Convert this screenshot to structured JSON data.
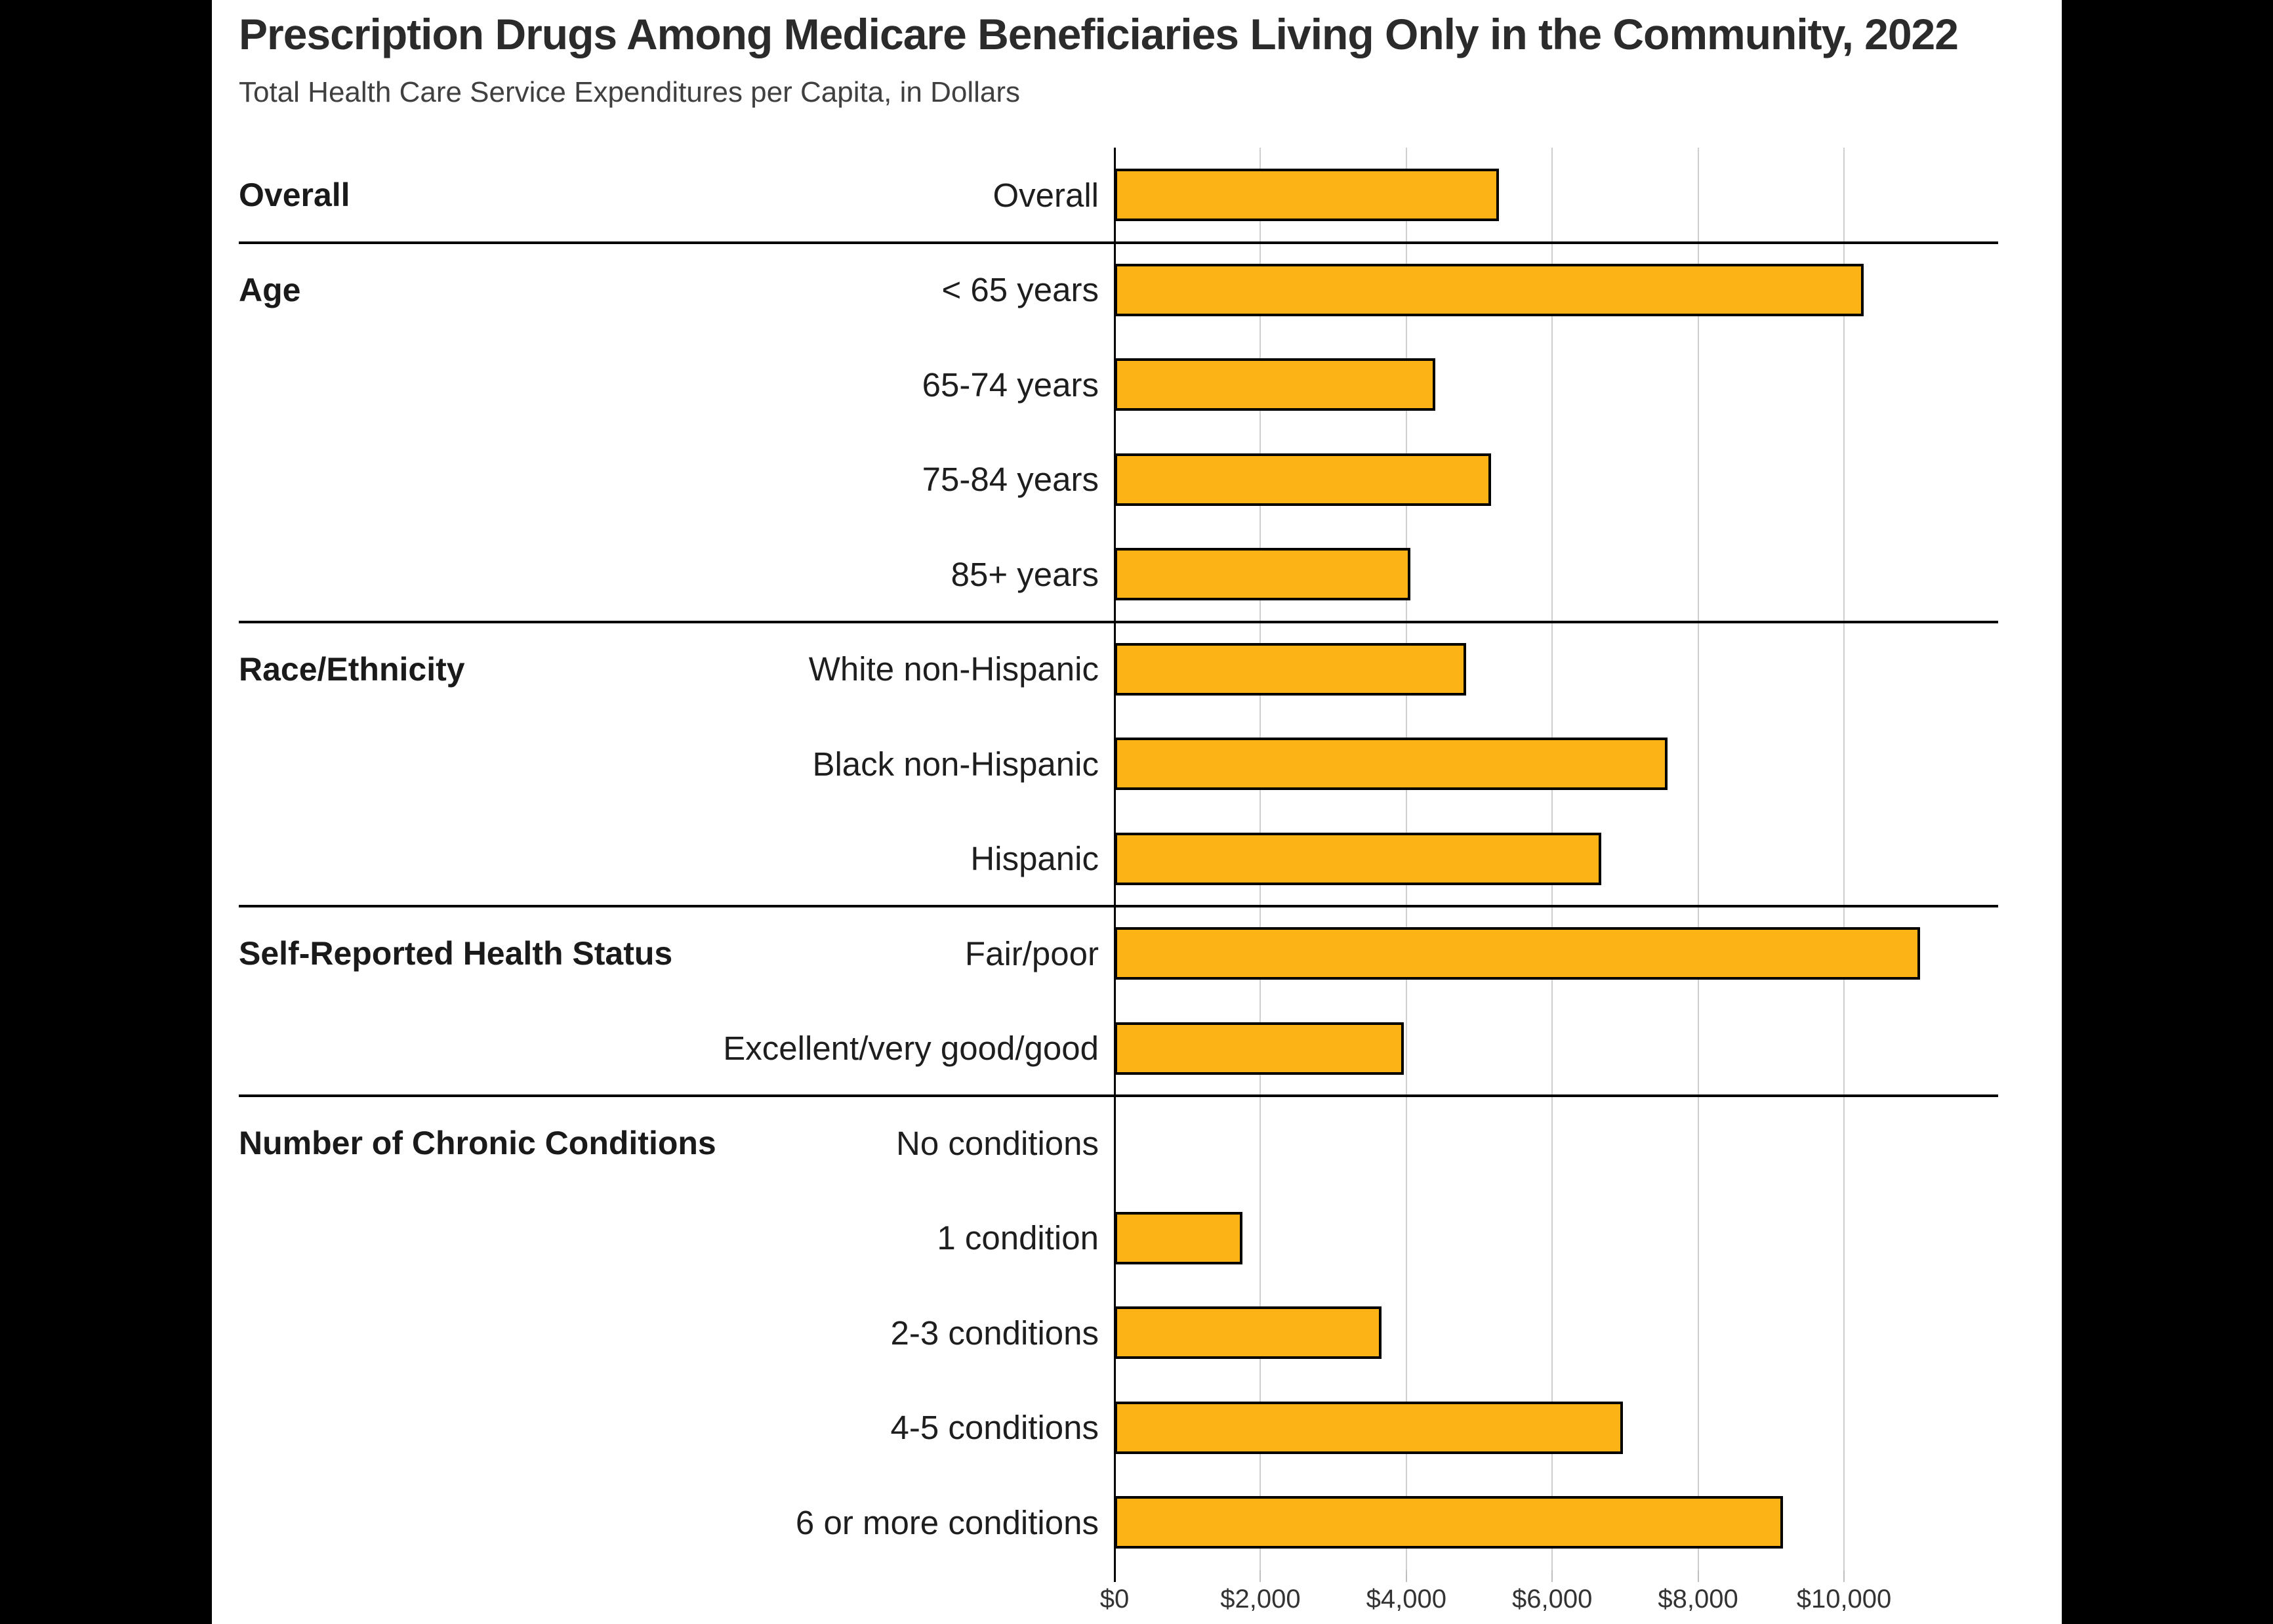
{
  "page": {
    "letterbox_color": "#000000",
    "canvas_color": "#FFFFFF"
  },
  "header": {
    "title": "Prescription Drugs Among Medicare Beneficiaries Living Only in the Community, 2022",
    "subtitle": "Total Health Care Service Expenditures per Capita, in Dollars"
  },
  "chart_data": {
    "type": "bar",
    "orientation": "horizontal",
    "title": "Prescription Drugs Among Medicare Beneficiaries Living Only in the Community, 2022",
    "subtitle": "Total Health Care Service Expenditures per Capita, in Dollars",
    "xlabel": "Total Health Care Service Expenditures per Capita (Dollars)",
    "ylabel": "",
    "xlim": [
      0,
      12100
    ],
    "grid": true,
    "legend": "none",
    "value_precision_note": "values estimated from gridlines, approx +/- 50 dollars",
    "bar_color": "#FCB315",
    "bar_border_color": "#000000",
    "x_ticks": [
      {
        "value": 0,
        "label": "$0"
      },
      {
        "value": 2000,
        "label": "$2,000"
      },
      {
        "value": 4000,
        "label": "$4,000"
      },
      {
        "value": 6000,
        "label": "$6,000"
      },
      {
        "value": 8000,
        "label": "$8,000"
      },
      {
        "value": 10000,
        "label": "$10,000"
      }
    ],
    "groups": [
      {
        "group": "Overall",
        "items": [
          {
            "label": "Overall",
            "value": 5270
          }
        ]
      },
      {
        "group": "Age",
        "items": [
          {
            "label": "< 65 years",
            "value": 10270
          },
          {
            "label": "65-74 years",
            "value": 4400
          },
          {
            "label": "75-84 years",
            "value": 5160
          },
          {
            "label": "85+ years",
            "value": 4060
          }
        ]
      },
      {
        "group": "Race/Ethnicity",
        "items": [
          {
            "label": "White non-Hispanic",
            "value": 4820
          },
          {
            "label": "Black non-Hispanic",
            "value": 7580
          },
          {
            "label": "Hispanic",
            "value": 6670
          }
        ]
      },
      {
        "group": "Self-Reported Health Status",
        "items": [
          {
            "label": "Fair/poor",
            "value": 11040
          },
          {
            "label": "Excellent/very good/good",
            "value": 3970
          }
        ]
      },
      {
        "group": "Number of Chronic Conditions",
        "items": [
          {
            "label": "No conditions",
            "value": 0
          },
          {
            "label": "1 condition",
            "value": 1750
          },
          {
            "label": "2-3 conditions",
            "value": 3660
          },
          {
            "label": "4-5 conditions",
            "value": 6970
          },
          {
            "label": "6 or more conditions",
            "value": 9160
          }
        ]
      }
    ]
  }
}
